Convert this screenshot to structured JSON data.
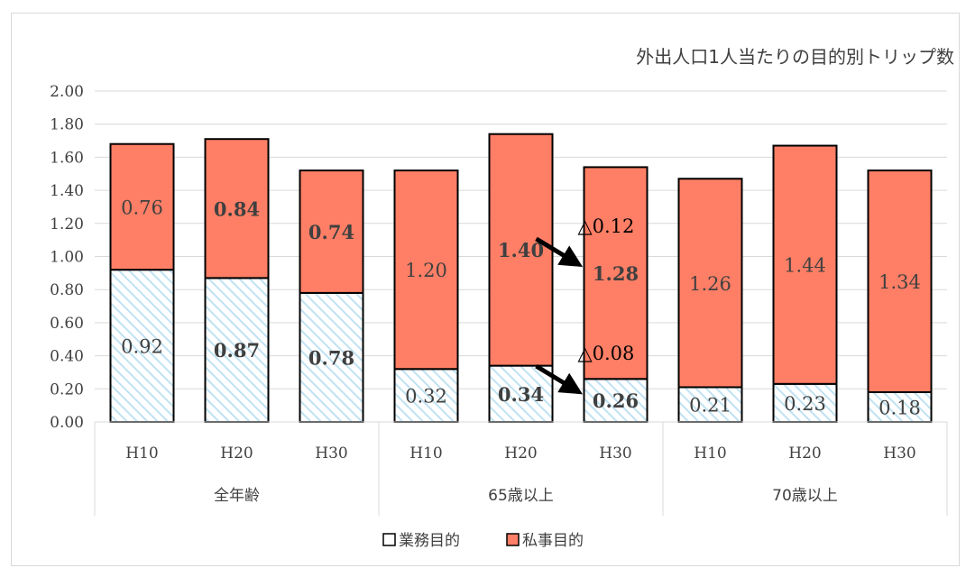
{
  "chart_data": {
    "type": "bar",
    "stacked": true,
    "title": "外出人口1人当たりの目的別トリップ数",
    "categories": [
      "H10",
      "H20",
      "H30",
      "H10",
      "H20",
      "H30",
      "H10",
      "H20",
      "H30"
    ],
    "groups": [
      {
        "label": "全年齢",
        "start": 0,
        "end": 2
      },
      {
        "label": "65歳以上",
        "start": 3,
        "end": 5
      },
      {
        "label": "70歳以上",
        "start": 6,
        "end": 8
      }
    ],
    "series": [
      {
        "name": "業務目的",
        "color": "#daeef8",
        "pattern": "diagonal-hatch",
        "values": [
          0.92,
          0.87,
          0.78,
          0.32,
          0.34,
          0.26,
          0.21,
          0.23,
          0.18
        ],
        "labels": [
          "0.92",
          "0.87",
          "0.78",
          "0.32",
          "0.34",
          "0.26",
          "0.21",
          "0.23",
          "0.18"
        ],
        "bold_labels": [
          false,
          true,
          true,
          false,
          true,
          true,
          false,
          false,
          false
        ]
      },
      {
        "name": "私事目的",
        "color": "#ff7f66",
        "values": [
          0.76,
          0.84,
          0.74,
          1.2,
          1.4,
          1.28,
          1.26,
          1.44,
          1.34
        ],
        "labels": [
          "0.76",
          "0.84",
          "0.74",
          "1.20",
          "1.40",
          "1.28",
          "1.26",
          "1.44",
          "1.34"
        ],
        "bold_labels": [
          false,
          true,
          true,
          false,
          true,
          true,
          false,
          false,
          false
        ]
      }
    ],
    "y_ticks": [
      "0.00",
      "0.20",
      "0.40",
      "0.60",
      "0.80",
      "1.00",
      "1.20",
      "1.40",
      "1.60",
      "1.80",
      "2.00"
    ],
    "ylim": [
      0,
      2.0
    ],
    "grid": true,
    "legend_position": "bottom",
    "annotations": [
      {
        "text": "△0.12",
        "target_series": 1,
        "target_index": 5
      },
      {
        "text": "△0.08",
        "target_series": 0,
        "target_index": 5
      }
    ]
  }
}
